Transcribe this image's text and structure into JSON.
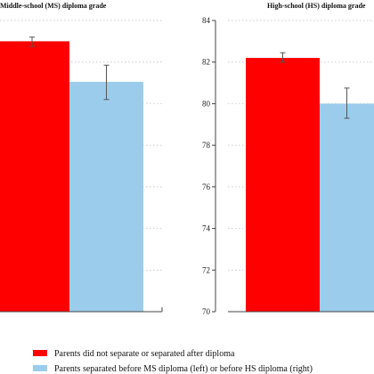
{
  "chart_data": [
    {
      "type": "bar",
      "title": "Middle-school (MS) diploma grade",
      "categories": [
        "Parents did not separate or separated after diploma",
        "Parents separated before MS diploma (left) or before HS diploma (right)"
      ],
      "series": [
        {
          "name": "Parents did not separate or separated after diploma",
          "value": 83.0,
          "err_low": 82.75,
          "err_high": 83.2
        },
        {
          "name": "Parents separated before MS diploma (left) or before HS diploma (right)",
          "value": 81.05,
          "err_low": 80.2,
          "err_high": 81.85
        }
      ],
      "ylim": [
        70,
        84
      ],
      "yticks": [],
      "grid": true
    },
    {
      "type": "bar",
      "title": "High-school (HS) diploma grade",
      "categories": [
        "Parents did not separate or separated after diploma",
        "Parents separated before MS diploma (left) or before HS diploma (right)"
      ],
      "series": [
        {
          "name": "Parents did not separate or separated after diploma",
          "value": 82.2,
          "err_low": 82.0,
          "err_high": 82.45
        },
        {
          "name": "Parents separated before MS diploma (left) or before HS diploma (right)",
          "value": 80.0,
          "err_low": 79.3,
          "err_high": 80.75
        }
      ],
      "ylim": [
        70,
        84
      ],
      "yticks": [
        "70",
        "72",
        "74",
        "76",
        "78",
        "80",
        "82",
        "84"
      ],
      "grid": true
    }
  ],
  "legend": {
    "placement": "bottom-left",
    "items": [
      {
        "label": "Parents did not separate or separated after diploma",
        "color": "#ff0000"
      },
      {
        "label": "Parents separated before MS diploma (left) or before HS diploma (right)",
        "color": "#9ccceb"
      }
    ]
  },
  "colors": {
    "series_1": "#ff0000",
    "series_2": "#9ccceb"
  }
}
